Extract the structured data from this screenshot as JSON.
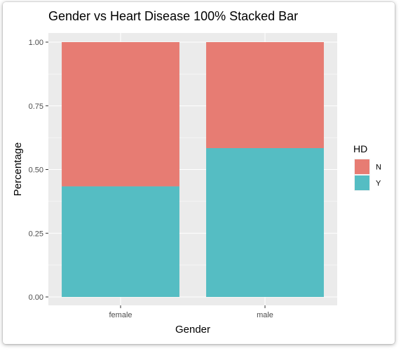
{
  "chart_data": {
    "type": "bar",
    "stacked": true,
    "percent": true,
    "title": "Gender vs Heart Disease 100% Stacked Bar",
    "xlabel": "Gender",
    "ylabel": "Percentage",
    "categories": [
      "female",
      "male"
    ],
    "series": [
      {
        "name": "N",
        "color": "#e77c73",
        "values": [
          0.566,
          0.416
        ]
      },
      {
        "name": "Y",
        "color": "#55bdc3",
        "values": [
          0.434,
          0.584
        ]
      }
    ],
    "ylim": [
      0,
      1
    ],
    "yticks": [
      "0.00",
      "0.25",
      "0.50",
      "0.75",
      "1.00"
    ],
    "grid": true,
    "panel_background": "#ebebeb",
    "legend": {
      "title": "HD",
      "position": "right",
      "entries": [
        "N",
        "Y"
      ]
    }
  }
}
